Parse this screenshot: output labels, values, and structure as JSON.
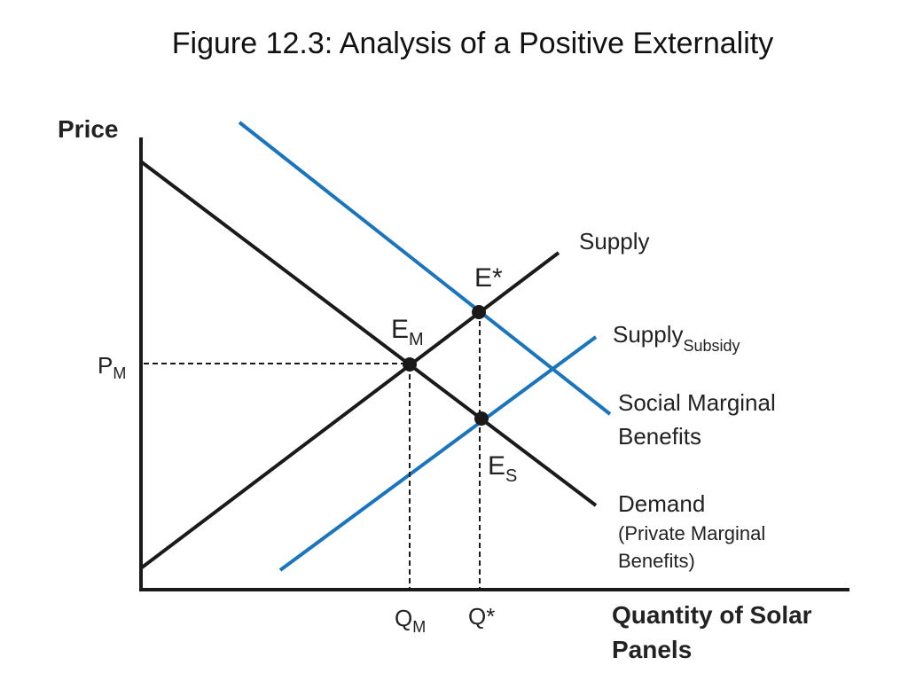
{
  "title": "Figure 12.3: Analysis of a Positive Externality",
  "axes": {
    "y_label": "Price",
    "x_label_line1": "Quantity of Solar",
    "x_label_line2": "Panels"
  },
  "curves": {
    "supply": "Supply",
    "supply_subsidy_main": "Supply",
    "supply_subsidy_sub": "Subsidy",
    "smb_line1": "Social Marginal",
    "smb_line2": "Benefits",
    "demand_line1": "Demand",
    "demand_line2": "(Private Marginal",
    "demand_line3": "Benefits)"
  },
  "points": {
    "em_main": "E",
    "em_sub": "M",
    "estar": "E*",
    "es_main": "E",
    "es_sub": "S"
  },
  "ticks": {
    "pm_main": "P",
    "pm_sub": "M",
    "qm_main": "Q",
    "qm_sub": "M",
    "qstar": "Q*"
  },
  "colors": {
    "black_curves": "#1a1a1a",
    "blue_curves": "#1a75bc"
  }
}
